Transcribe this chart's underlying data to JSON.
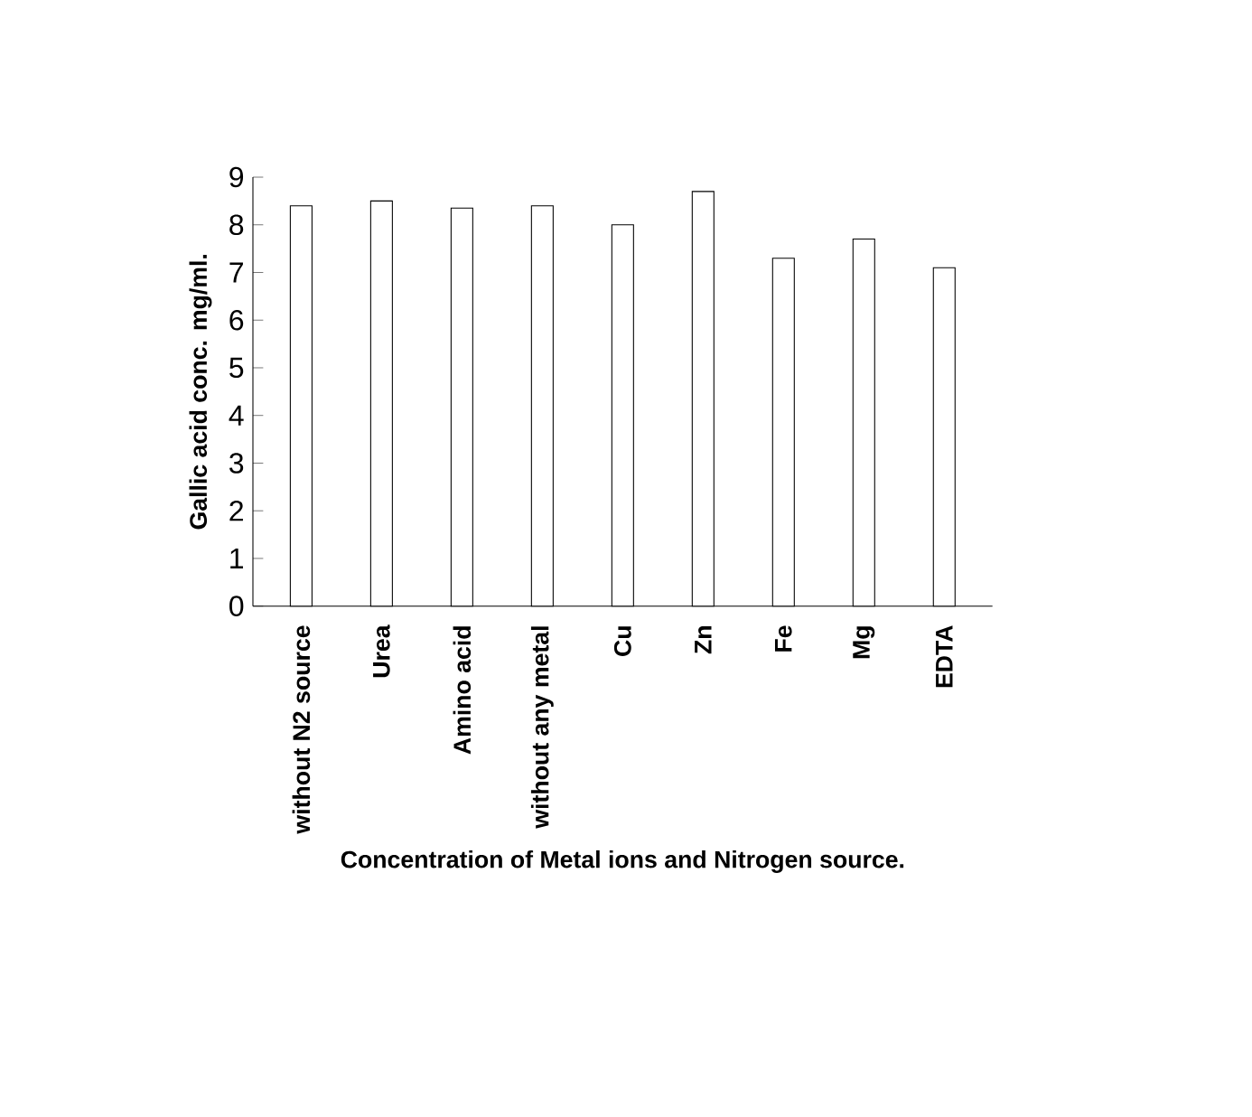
{
  "chart_data": {
    "type": "bar",
    "xlabel": "Concentration of Metal ions and Nitrogen source.",
    "ylabel": "Gallic acid conc. mg/ml.",
    "categories": [
      "without N2 source",
      "Urea",
      "Amino acid",
      "without any metal",
      "Cu",
      "Zn",
      "Fe",
      "Mg",
      "EDTA"
    ],
    "values": [
      8.4,
      8.5,
      8.35,
      8.4,
      8.0,
      8.7,
      7.3,
      7.7,
      7.1
    ],
    "color": "#ffffff",
    "ylim": [
      0,
      9
    ],
    "yticks": [
      0,
      1,
      2,
      3,
      4,
      5,
      6,
      7,
      8,
      9
    ],
    "grid": false
  }
}
